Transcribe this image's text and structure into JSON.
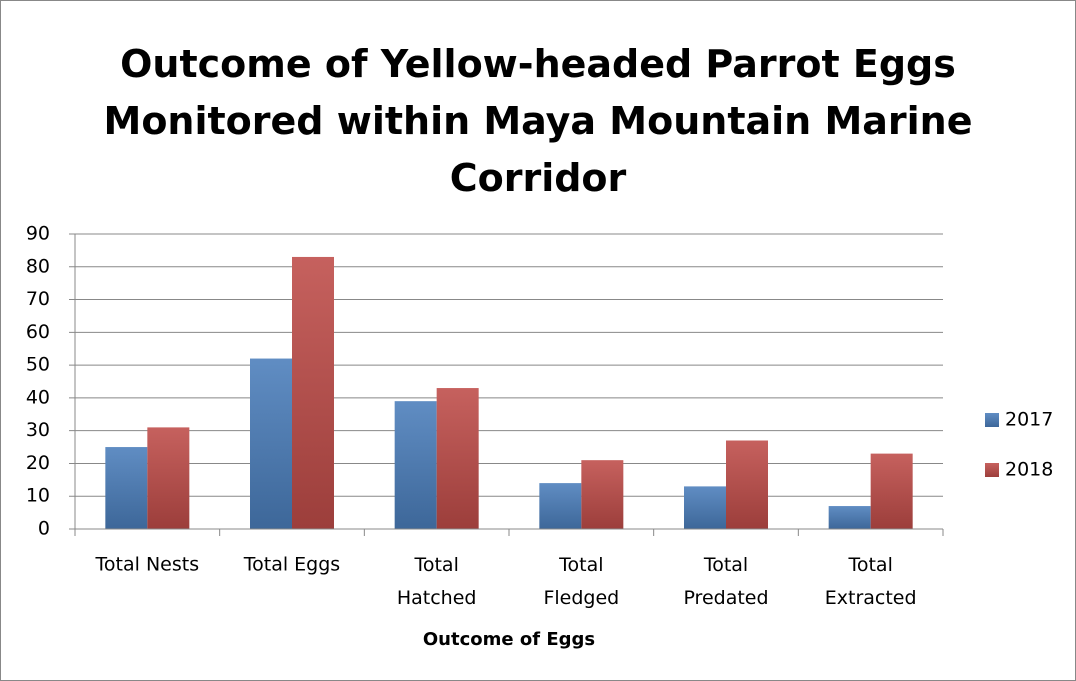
{
  "chart_data": {
    "type": "bar",
    "title": "Outcome of Yellow-headed Parrot Eggs Monitored within Maya Mountain Marine Corridor",
    "x_label": "Outcome of Eggs",
    "categories": [
      "Total Nests",
      "Total Eggs",
      "Total Hatched",
      "Total Fledged",
      "Total Predated",
      "Total Extracted"
    ],
    "series": [
      {
        "name": "2017",
        "color": "#4a7ebb",
        "values": [
          25,
          52,
          39,
          14,
          13,
          7
        ]
      },
      {
        "name": "2018",
        "color": "#be4b48",
        "values": [
          31,
          83,
          43,
          21,
          27,
          23
        ]
      }
    ],
    "ylim": [
      0,
      90
    ],
    "yticks": [
      0,
      10,
      20,
      30,
      40,
      50,
      60,
      70,
      80,
      90
    ],
    "grid": true,
    "legend": "right"
  }
}
